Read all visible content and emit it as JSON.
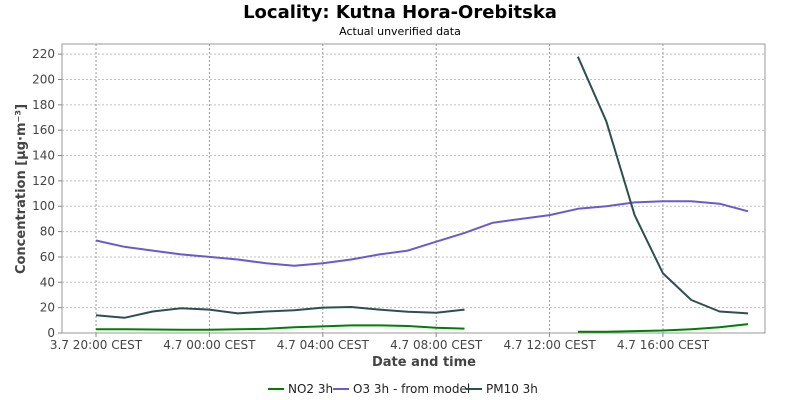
{
  "chart_data": {
    "type": "line",
    "title": "Locality: Kutna Hora-Orebitska",
    "subtitle": "Actual unverified data",
    "xlabel": "Date and time",
    "ylabel": "Concentration [µg·m⁻³]",
    "ylim": [
      0,
      228
    ],
    "yticks": [
      0,
      20,
      40,
      60,
      80,
      100,
      120,
      140,
      160,
      180,
      200,
      220
    ],
    "xlim_hours_from_3_7_20_00": [
      -1.2,
      23.6
    ],
    "xticks": [
      {
        "label": "3.7 20:00 CEST",
        "value": 0
      },
      {
        "label": "4.7 00:00 CEST",
        "value": 4
      },
      {
        "label": "4.7 04:00 CEST",
        "value": 8
      },
      {
        "label": "4.7 08:00 CEST",
        "value": 12
      },
      {
        "label": "4.7 12:00 CEST",
        "value": 16
      },
      {
        "label": "4.7 16:00 CEST",
        "value": 20
      }
    ],
    "grid": true,
    "legend_position": "bottom",
    "series": [
      {
        "name": "NO2 3h",
        "color": "#008000",
        "segments": [
          [
            [
              0,
              3
            ],
            [
              1,
              3
            ],
            [
              2,
              2.8
            ],
            [
              3,
              2.6
            ],
            [
              4,
              2.6
            ],
            [
              5,
              3
            ],
            [
              6,
              3.3
            ],
            [
              7,
              4.5
            ],
            [
              8,
              5.2
            ],
            [
              9,
              6
            ],
            [
              10,
              6
            ],
            [
              11,
              5.5
            ],
            [
              12,
              4.2
            ],
            [
              13,
              3.5
            ]
          ],
          [
            [
              17,
              1
            ],
            [
              18,
              1
            ],
            [
              19,
              1.5
            ],
            [
              20,
              2
            ],
            [
              21,
              3
            ],
            [
              22,
              4.5
            ],
            [
              23,
              7
            ]
          ]
        ]
      },
      {
        "name": "O3 3h - from model",
        "color": "#6a5acd",
        "segments": [
          [
            [
              0,
              73
            ],
            [
              1,
              68
            ],
            [
              2,
              65
            ],
            [
              3,
              62
            ],
            [
              4,
              60
            ],
            [
              5,
              58
            ],
            [
              6,
              55
            ],
            [
              7,
              53
            ],
            [
              8,
              55
            ],
            [
              9,
              58
            ],
            [
              10,
              62
            ],
            [
              11,
              65
            ],
            [
              12,
              72
            ],
            [
              13,
              79
            ],
            [
              14,
              87
            ],
            [
              15,
              90
            ],
            [
              16,
              93
            ],
            [
              17,
              98
            ],
            [
              18,
              100
            ],
            [
              19,
              103
            ],
            [
              20,
              104
            ],
            [
              21,
              104
            ],
            [
              22,
              102
            ],
            [
              23,
              96
            ]
          ]
        ]
      },
      {
        "name": "PM10 3h",
        "color": "#2f4f4f",
        "segments": [
          [
            [
              0,
              14
            ],
            [
              1,
              12
            ],
            [
              2,
              17
            ],
            [
              3,
              19.5
            ],
            [
              4,
              18.5
            ],
            [
              5,
              15.5
            ],
            [
              6,
              17
            ],
            [
              7,
              18
            ],
            [
              8,
              20
            ],
            [
              9,
              20.5
            ],
            [
              10,
              18.5
            ],
            [
              11,
              16.8
            ],
            [
              12,
              16
            ],
            [
              13,
              18.5
            ]
          ],
          [
            [
              17,
              218
            ],
            [
              18,
              167
            ],
            [
              19,
              93
            ],
            [
              20,
              47
            ],
            [
              21,
              26
            ],
            [
              22,
              17
            ],
            [
              23,
              15.5
            ]
          ]
        ]
      }
    ]
  }
}
